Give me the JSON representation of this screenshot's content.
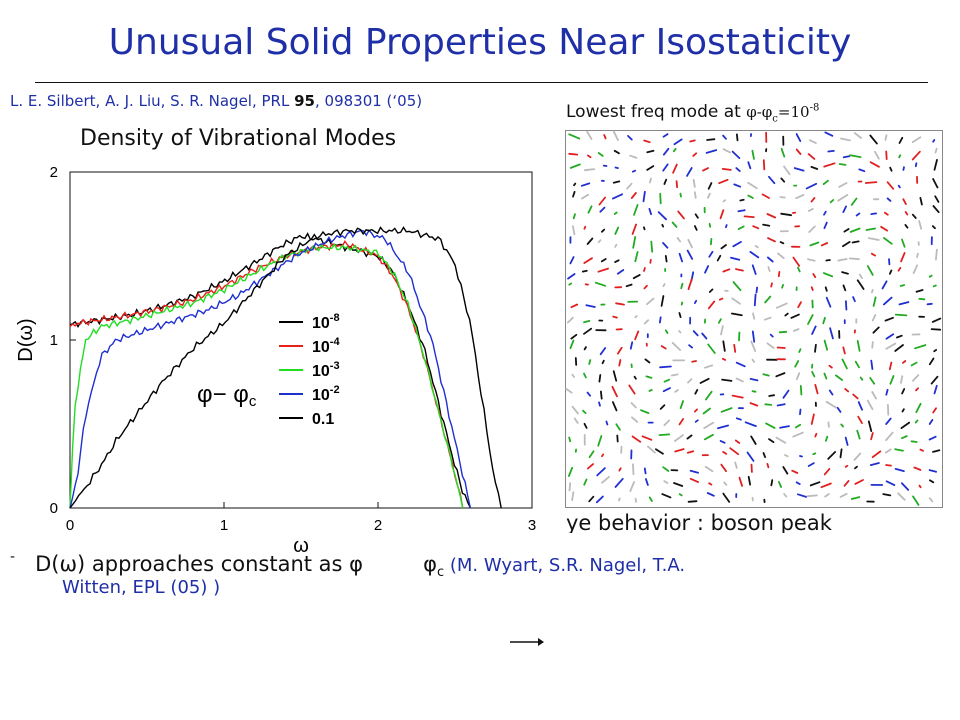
{
  "slide": {
    "title": "Unusual Solid Properties Near Isostaticity",
    "citation_authors": "L. E. Silbert, A. J. Liu, S. R. Nagel, PRL ",
    "citation_volume": "95",
    "citation_rest": ", 098301 (‘05)",
    "chart_heading": "Density of Vibrational Modes",
    "mode_title_text": "Lowest freq mode at ",
    "mode_title_math": "φ-φ",
    "mode_title_sub": "c",
    "mode_title_value": "=10",
    "mode_title_exp": "-8",
    "peak_text": "ye behavior : boson peak",
    "bullet_symbol": "-",
    "bullet_text": "D(ω) approaches constant as φ",
    "bullet_phi": "φ",
    "bullet_sub": "c",
    "bullet_ref": " (M. Wyart, S.R. Nagel, T.A.",
    "bullet_ref_cont": "Witten, EPL (05) )"
  },
  "colors": {
    "title": "#1f2fa8",
    "text": "#111111",
    "series_1e-8": "#000000",
    "series_1e-4": "#e8201a",
    "series_1e-3": "#22dd22",
    "series_1e-2": "#1f2fd0",
    "series_0.1": "#000000",
    "mode_colors": [
      "#111111",
      "#1f2fd0",
      "#e02020",
      "#22aa22",
      "#bbbbbb"
    ]
  },
  "chart_data": {
    "type": "line",
    "title": "",
    "xlabel": "ω",
    "ylabel": "D(ω)",
    "xlim": [
      0,
      3
    ],
    "ylim": [
      0,
      2
    ],
    "xticks": [
      0,
      1,
      2,
      3
    ],
    "yticks": [
      0,
      1,
      2
    ],
    "legend_title": "φ− φc",
    "legend_title_main": "φ− φ",
    "legend_title_sub": "c",
    "legend_position": "center-right",
    "series": [
      {
        "name": "10^-8",
        "label_base": "10",
        "label_exp": "-8",
        "color": "#000000",
        "x": [
          0.0,
          0.05,
          0.2,
          0.4,
          0.6,
          0.8,
          1.0,
          1.2,
          1.35,
          1.5,
          1.6,
          1.8,
          2.0,
          2.1,
          2.2,
          2.3,
          2.4,
          2.5,
          2.55,
          2.6
        ],
        "y": [
          1.09,
          1.1,
          1.12,
          1.15,
          1.2,
          1.26,
          1.35,
          1.46,
          1.55,
          1.62,
          1.6,
          1.55,
          1.5,
          1.4,
          1.2,
          0.95,
          0.6,
          0.25,
          0.1,
          0.0
        ]
      },
      {
        "name": "10^-4",
        "label_base": "10",
        "label_exp": "-4",
        "color": "#e8201a",
        "x": [
          0.0,
          0.05,
          0.2,
          0.4,
          0.6,
          0.8,
          1.0,
          1.2,
          1.4,
          1.6,
          1.8,
          2.0,
          2.1,
          2.2,
          2.3,
          2.4,
          2.5,
          2.55
        ],
        "y": [
          1.08,
          1.1,
          1.12,
          1.15,
          1.19,
          1.24,
          1.32,
          1.42,
          1.5,
          1.55,
          1.57,
          1.5,
          1.38,
          1.18,
          0.9,
          0.55,
          0.2,
          0.0
        ]
      },
      {
        "name": "10^-3",
        "label_base": "10",
        "label_exp": "-3",
        "color": "#22dd22",
        "x": [
          0.0,
          0.03,
          0.1,
          0.2,
          0.4,
          0.6,
          0.8,
          1.0,
          1.2,
          1.4,
          1.6,
          1.8,
          2.0,
          2.1,
          2.2,
          2.3,
          2.4,
          2.5,
          2.55
        ],
        "y": [
          0.0,
          0.6,
          1.0,
          1.08,
          1.12,
          1.17,
          1.22,
          1.3,
          1.4,
          1.5,
          1.55,
          1.55,
          1.52,
          1.4,
          1.2,
          0.9,
          0.55,
          0.2,
          0.0
        ]
      },
      {
        "name": "10^-2",
        "label_base": "10",
        "label_exp": "-2",
        "color": "#1f2fd0",
        "x": [
          0.0,
          0.05,
          0.1,
          0.2,
          0.3,
          0.5,
          0.7,
          0.9,
          1.1,
          1.3,
          1.5,
          1.7,
          1.9,
          2.05,
          2.2,
          2.35,
          2.45,
          2.55,
          2.6
        ],
        "y": [
          0.0,
          0.2,
          0.55,
          0.9,
          1.0,
          1.06,
          1.12,
          1.18,
          1.27,
          1.4,
          1.52,
          1.6,
          1.65,
          1.6,
          1.4,
          1.0,
          0.6,
          0.2,
          0.0
        ]
      },
      {
        "name": "0.1",
        "label_base": "0.1",
        "label_exp": "",
        "color": "#000000",
        "x": [
          0.0,
          0.1,
          0.2,
          0.3,
          0.4,
          0.6,
          0.8,
          1.0,
          1.2,
          1.4,
          1.6,
          1.8,
          2.0,
          2.2,
          2.4,
          2.5,
          2.6,
          2.7,
          2.75,
          2.8
        ],
        "y": [
          0.0,
          0.12,
          0.25,
          0.4,
          0.52,
          0.75,
          0.95,
          1.1,
          1.3,
          1.5,
          1.62,
          1.65,
          1.65,
          1.65,
          1.6,
          1.45,
          1.1,
          0.5,
          0.2,
          0.0
        ]
      }
    ]
  }
}
